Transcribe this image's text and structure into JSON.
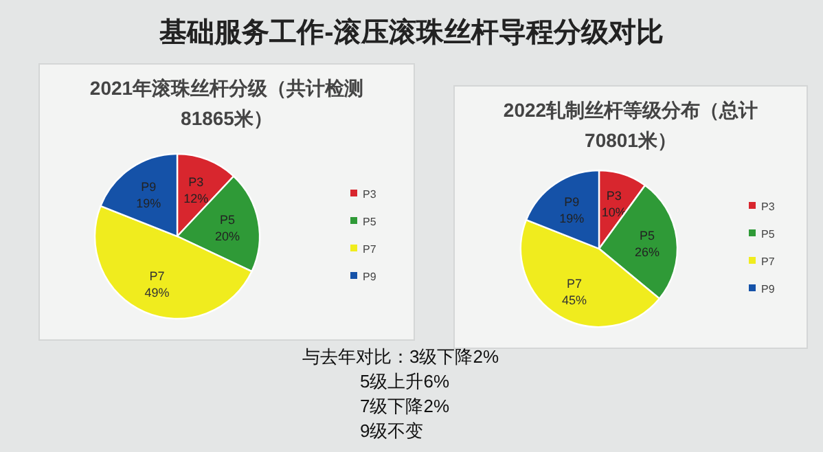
{
  "chart_data": [
    {
      "type": "other",
      "title": "基础服务工作-滚压滚珠丝杆导程分级对比"
    },
    {
      "type": "pie",
      "title": "2021年滚珠丝杆分级（共计检测81865米）",
      "categories": [
        "P3",
        "P5",
        "P7",
        "P9"
      ],
      "values": [
        12,
        20,
        49,
        19
      ],
      "value_labels": [
        "12%",
        "20%",
        "49%",
        "19%"
      ],
      "colors": [
        "#d8262e",
        "#2f9a37",
        "#f0ec1e",
        "#1552a8"
      ],
      "legend": "right"
    },
    {
      "type": "pie",
      "title": "2022轧制丝杆等级分布（总计70801米）",
      "categories": [
        "P3",
        "P5",
        "P7",
        "P9"
      ],
      "values": [
        10,
        26,
        45,
        19
      ],
      "value_labels": [
        "10%",
        "26%",
        "45%",
        "19%"
      ],
      "colors": [
        "#d8262e",
        "#2f9a37",
        "#f0ec1e",
        "#1552a8"
      ],
      "legend": "right"
    },
    {
      "type": "other",
      "annotations": [
        "与去年对比：3级下降2%",
        "5级上升6%",
        "7级下降2%",
        "9级不变"
      ]
    }
  ]
}
